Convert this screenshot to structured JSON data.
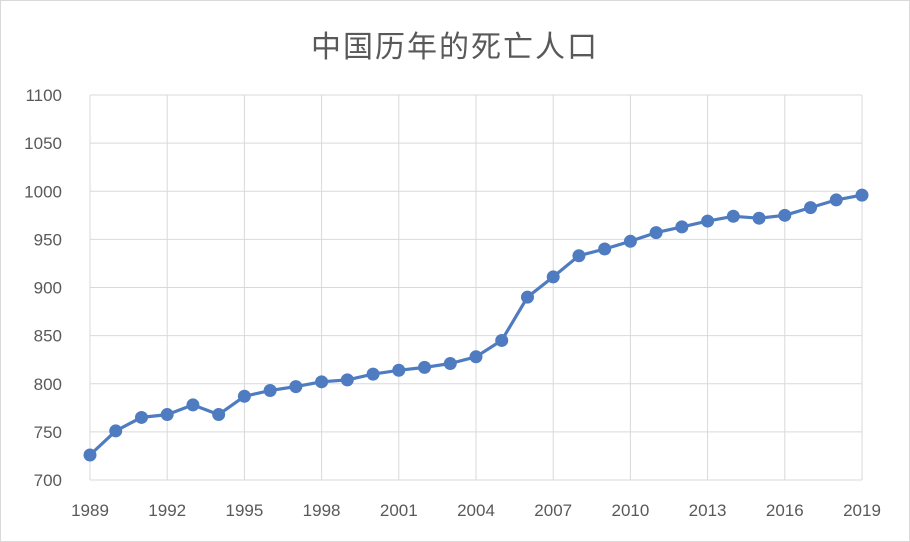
{
  "chart_data": {
    "type": "line",
    "title": "中国历年的死亡人口",
    "xlabel": "",
    "ylabel": "",
    "x": [
      1989,
      1990,
      1991,
      1992,
      1993,
      1994,
      1995,
      1996,
      1997,
      1998,
      1999,
      2000,
      2001,
      2002,
      2003,
      2004,
      2005,
      2006,
      2007,
      2008,
      2009,
      2010,
      2011,
      2012,
      2013,
      2014,
      2015,
      2016,
      2017,
      2018,
      2019
    ],
    "series": [
      {
        "name": "",
        "color": "#4f7cc0",
        "values": [
          726,
          751,
          765,
          768,
          778,
          768,
          787,
          793,
          797,
          802,
          804,
          810,
          814,
          817,
          821,
          828,
          845,
          890,
          911,
          933,
          940,
          948,
          957,
          963,
          969,
          974,
          972,
          975,
          983,
          991,
          996
        ]
      }
    ],
    "xticks": [
      "1989",
      "1992",
      "1995",
      "1998",
      "2001",
      "2004",
      "2007",
      "2010",
      "2013",
      "2016",
      "2019"
    ],
    "yticks": [
      "700",
      "750",
      "800",
      "850",
      "900",
      "950",
      "1000",
      "1050",
      "1100"
    ],
    "ylim": [
      700,
      1100
    ],
    "xlim": [
      1989,
      2019
    ],
    "grid": true,
    "legend": "none"
  }
}
